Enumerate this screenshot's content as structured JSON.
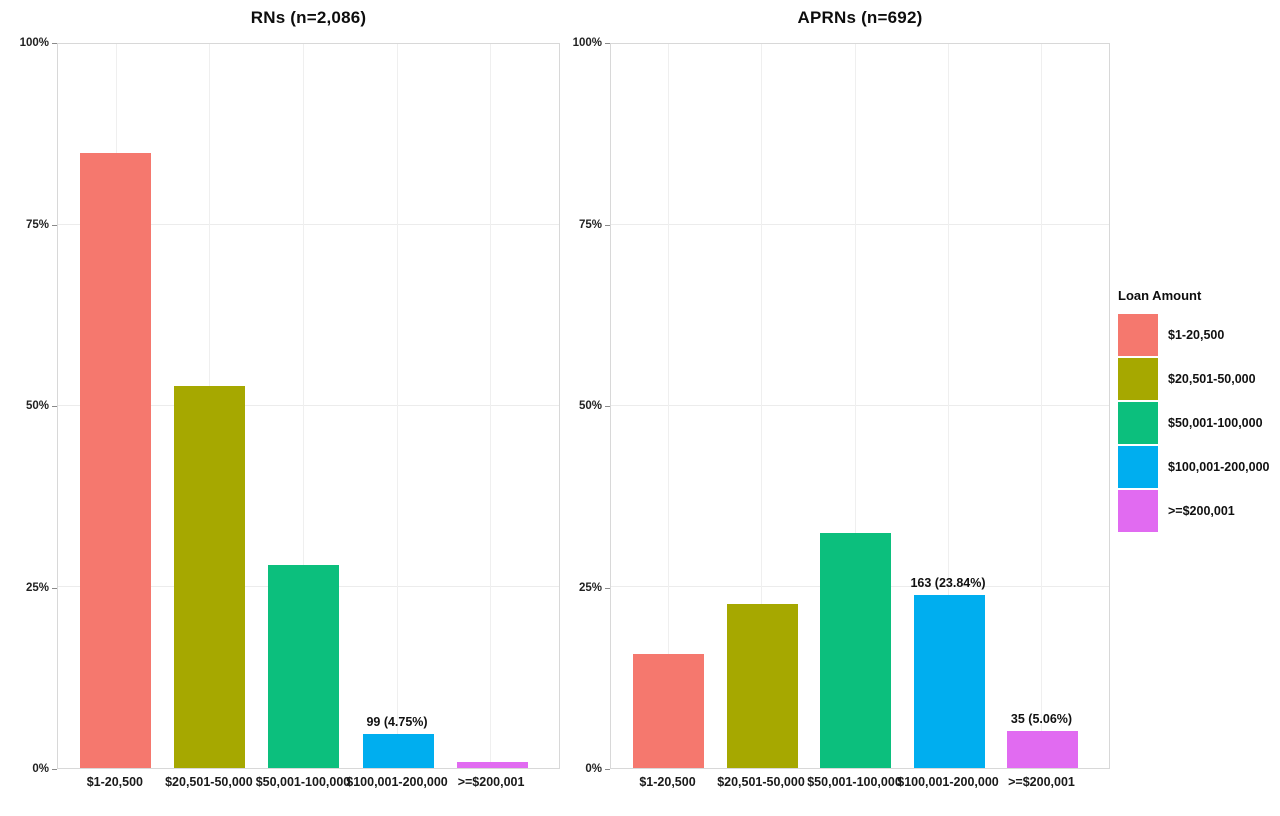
{
  "figure": {
    "legend": {
      "title": "Loan Amount",
      "entries": [
        {
          "label": "$1-20,500",
          "color": "#F5786E"
        },
        {
          "label": "$20,501-50,000",
          "color": "#A6A800"
        },
        {
          "label": "$50,001-100,000",
          "color": "#0CBF7D"
        },
        {
          "label": "$100,001-200,000",
          "color": "#00AEEF"
        },
        {
          "label": ">=$200,001",
          "color": "#E16BF1"
        }
      ]
    }
  },
  "chart_data": [
    {
      "type": "bar",
      "title": "RNs (n=2,086)",
      "categories": [
        "$1-20,500",
        "$20,501-50,000",
        "$50,001-100,000",
        "$100,001-200,000",
        ">=$200,001"
      ],
      "values": [
        85,
        52.7,
        28,
        4.75,
        0.8
      ],
      "bar_labels": [
        "",
        "",
        "",
        "99 (4.75%)",
        ""
      ],
      "colors": [
        "#F5786E",
        "#A6A800",
        "#0CBF7D",
        "#00AEEF",
        "#E16BF1"
      ],
      "xlabel": "",
      "ylabel": "",
      "ylim": [
        0,
        100
      ],
      "yticks": [
        0,
        25,
        50,
        75,
        100
      ],
      "ytick_labels": [
        "0%",
        "25%",
        "50%",
        "75%",
        "100%"
      ],
      "grid": true,
      "legend_position": "right"
    },
    {
      "type": "bar",
      "title": "APRNs (n=692)",
      "categories": [
        "$1-20,500",
        "$20,501-50,000",
        "$50,001-100,000",
        "$100,001-200,000",
        ">=$200,001"
      ],
      "values": [
        15.8,
        22.6,
        32.5,
        23.84,
        5.06
      ],
      "bar_labels": [
        "",
        "",
        "",
        "163 (23.84%)",
        "35 (5.06%)"
      ],
      "colors": [
        "#F5786E",
        "#A6A800",
        "#0CBF7D",
        "#00AEEF",
        "#E16BF1"
      ],
      "xlabel": "",
      "ylabel": "",
      "ylim": [
        0,
        100
      ],
      "yticks": [
        0,
        25,
        50,
        75,
        100
      ],
      "ytick_labels": [
        "0%",
        "25%",
        "50%",
        "75%",
        "100%"
      ],
      "grid": true,
      "legend_position": "right"
    }
  ]
}
